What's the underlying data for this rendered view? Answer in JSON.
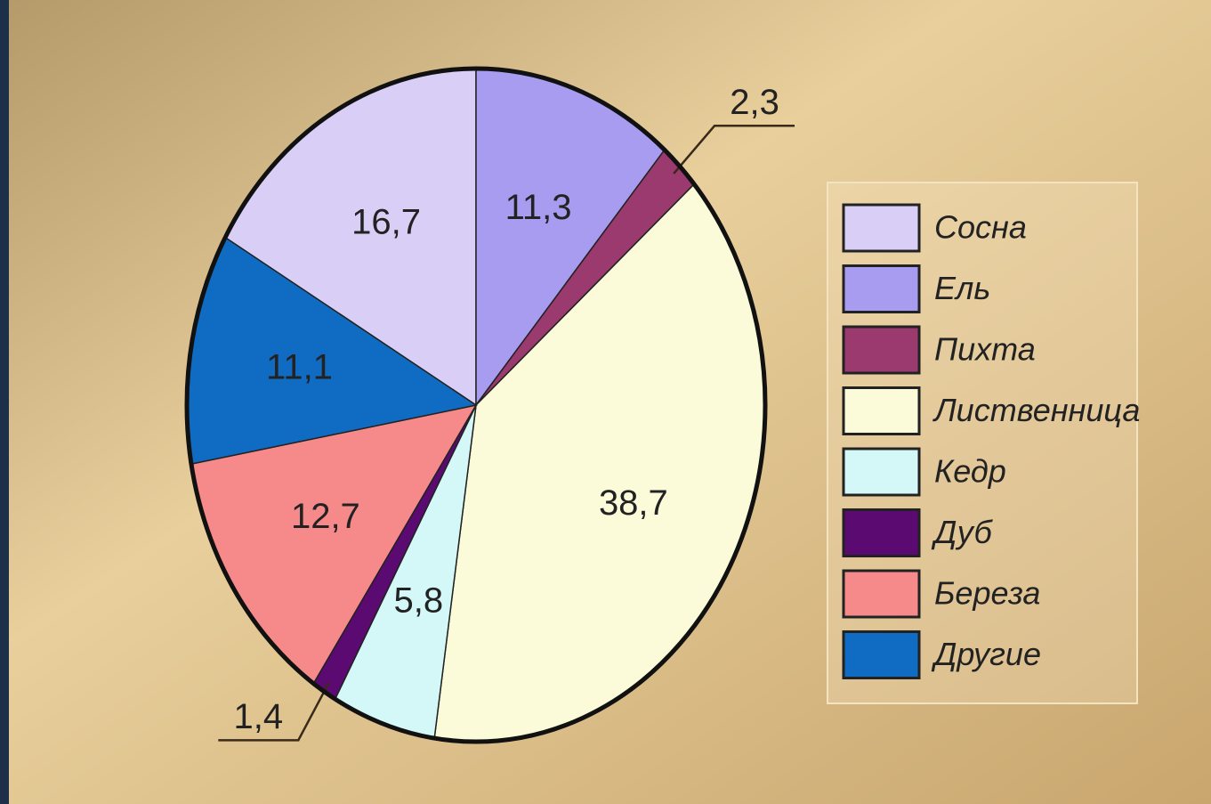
{
  "chart_data": {
    "type": "pie",
    "categories": [
      "Сосна",
      "Ель",
      "Пихта",
      "Лиственница",
      "Кедр",
      "Дуб",
      "Береза",
      "Другие"
    ],
    "values": [
      16.7,
      11.3,
      2.3,
      38.7,
      5.8,
      1.4,
      12.7,
      11.1
    ],
    "value_labels": [
      "16,7",
      "11,3",
      "2,3",
      "38,7",
      "5,8",
      "1,4",
      "12,7",
      "11,1"
    ],
    "colors": [
      "#d9cff6",
      "#a89cf0",
      "#9a3a6e",
      "#fbfbd9",
      "#d4f7f7",
      "#5a0a70",
      "#f68a8a",
      "#0f6cc2"
    ],
    "legend": "right"
  }
}
